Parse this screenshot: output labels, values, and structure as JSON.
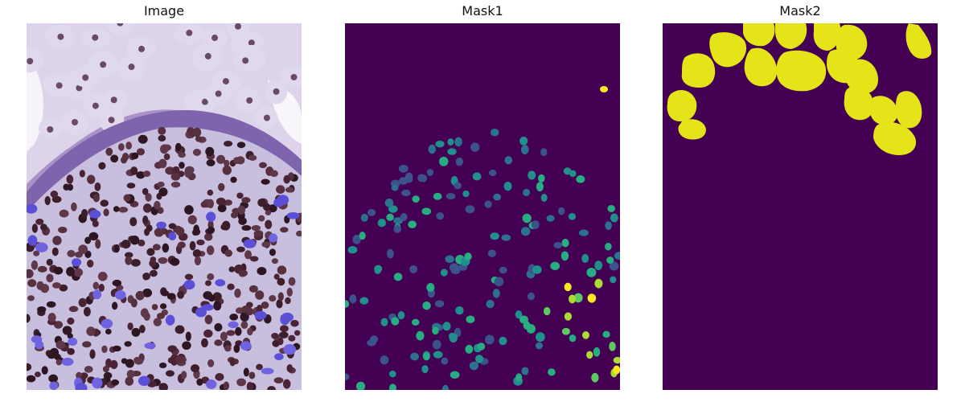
{
  "panels": [
    {
      "title": "Image",
      "content": "histology-microscopy-image"
    },
    {
      "title": "Mask1",
      "content": "nuclei-instance-mask"
    },
    {
      "title": "Mask2",
      "content": "large-cell-instance-mask"
    }
  ],
  "colors": {
    "mask_background": "#440154",
    "viridis_blue": "#3b528b",
    "viridis_teal": "#21908d",
    "viridis_green": "#5ec962",
    "viridis_yellow": "#fde725",
    "mask2_fill": "#e4e418",
    "tissue_lavender": "#b8a8d8",
    "nucleus_brown": "#4a2434"
  }
}
